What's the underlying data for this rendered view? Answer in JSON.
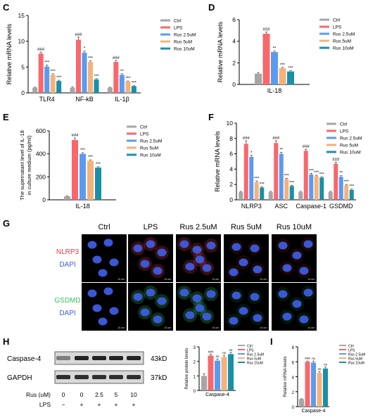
{
  "colors": {
    "Ctrl": "#a6a6a6",
    "LPS": "#f8686b",
    "Rus 2.5uM": "#5b9bef",
    "Rus 5uM": "#f4b27b",
    "Rus 10uM": "#1a8fa8",
    "nlrp3_stain": "#e23a4a",
    "gsdmd_stain": "#34c45a",
    "dapi_stain": "#3d5ce0"
  },
  "legend_names": [
    "Ctrl",
    "LPS",
    "Rus 2.5uM",
    "Rus 5uM",
    "Rus 10uM"
  ],
  "panel_letters": {
    "C": "C",
    "D": "D",
    "E": "E",
    "F": "F",
    "G": "G",
    "H": "H",
    "I": "I"
  },
  "chart_data": [
    {
      "panel": "C",
      "type": "bar",
      "ylabel": "Relative  mRNA levels",
      "ylim": [
        0,
        15
      ],
      "yticks": [
        "0",
        "5",
        "10",
        "15"
      ],
      "categories": [
        "TLR4",
        "NF-kB",
        "IL-1β"
      ],
      "series": [
        {
          "name": "Ctrl",
          "values": [
            1.0,
            1.0,
            1.0
          ],
          "errors": [
            0.1,
            0.15,
            0.1
          ]
        },
        {
          "name": "LPS",
          "values": [
            7.6,
            10.3,
            6.0
          ],
          "errors": [
            0.3,
            0.5,
            0.3
          ]
        },
        {
          "name": "Rus 2.5uM",
          "values": [
            5.1,
            7.8,
            3.5
          ],
          "errors": [
            0.3,
            0.3,
            0.2
          ]
        },
        {
          "name": "Rus 5uM",
          "values": [
            3.5,
            6.0,
            2.2
          ],
          "errors": [
            0.2,
            0.2,
            0.1
          ]
        },
        {
          "name": "Rus 10uM",
          "values": [
            2.3,
            2.6,
            1.3
          ],
          "errors": [
            0.15,
            0.15,
            0.1
          ]
        }
      ],
      "annotations": [
        [
          "",
          "###",
          "***",
          "***",
          "***"
        ],
        [
          "",
          "###",
          "*",
          "***",
          "***"
        ],
        [
          "",
          "###",
          "**",
          "***",
          "***"
        ]
      ]
    },
    {
      "panel": "D",
      "type": "bar",
      "ylabel": "Relative  mRNA levels",
      "ylim": [
        0,
        6
      ],
      "yticks": [
        "0",
        "2",
        "4",
        "6"
      ],
      "categories": [
        "IL-18"
      ],
      "series": [
        {
          "name": "Ctrl",
          "values": [
            1.0
          ],
          "errors": [
            0.1
          ]
        },
        {
          "name": "LPS",
          "values": [
            4.7
          ],
          "errors": [
            0.15
          ]
        },
        {
          "name": "Rus 2.5uM",
          "values": [
            3.0
          ],
          "errors": [
            0.1
          ]
        },
        {
          "name": "Rus 5uM",
          "values": [
            1.5
          ],
          "errors": [
            0.08
          ]
        },
        {
          "name": "Rus 10uM",
          "values": [
            1.2
          ],
          "errors": [
            0.08
          ]
        }
      ],
      "annotations": [
        [
          "",
          "###",
          "**",
          "***",
          "***"
        ]
      ]
    },
    {
      "panel": "E",
      "type": "bar",
      "ylabel": "The supernatant level of IL-18 in culture medium (pg/ml)",
      "ylim": [
        0,
        600
      ],
      "yticks": [
        "0",
        "200",
        "400",
        "600"
      ],
      "categories": [
        "IL-18"
      ],
      "series": [
        {
          "name": "Ctrl",
          "values": [
            30
          ],
          "errors": [
            5
          ]
        },
        {
          "name": "LPS",
          "values": [
            520
          ],
          "errors": [
            18
          ]
        },
        {
          "name": "Rus 2.5uM",
          "values": [
            400
          ],
          "errors": [
            10
          ]
        },
        {
          "name": "Rus 5uM",
          "values": [
            340
          ],
          "errors": [
            8
          ]
        },
        {
          "name": "Rus 10uM",
          "values": [
            280
          ],
          "errors": [
            8
          ]
        }
      ],
      "annotations": [
        [
          "",
          "###",
          "***",
          "***",
          "***"
        ]
      ]
    },
    {
      "panel": "F",
      "type": "bar",
      "ylabel": "Relative  mRNA levels",
      "ylim": [
        0,
        10
      ],
      "yticks": [
        "0",
        "2",
        "4",
        "6",
        "8",
        "10"
      ],
      "categories": [
        "NLRP3",
        "ASC",
        "Caspase-1",
        "GSDMD"
      ],
      "series": [
        {
          "name": "Ctrl",
          "values": [
            1.0,
            1.0,
            1.0,
            1.0
          ],
          "errors": [
            0.1,
            0.1,
            0.1,
            0.1
          ]
        },
        {
          "name": "LPS",
          "values": [
            7.3,
            7.4,
            6.4,
            4.7
          ],
          "errors": [
            0.4,
            0.3,
            0.2,
            0.2
          ]
        },
        {
          "name": "Rus 2.5uM",
          "values": [
            5.6,
            6.0,
            3.3,
            3.0
          ],
          "errors": [
            0.2,
            0.2,
            0.15,
            0.15
          ]
        },
        {
          "name": "Rus 5uM",
          "values": [
            2.3,
            2.7,
            3.1,
            1.9
          ],
          "errors": [
            0.15,
            0.1,
            0.1,
            0.1
          ]
        },
        {
          "name": "Rus 10uM",
          "values": [
            1.6,
            1.8,
            2.9,
            1.3
          ],
          "errors": [
            0.1,
            0.1,
            0.1,
            0.1
          ]
        }
      ],
      "annotations": [
        [
          "",
          "###",
          "*",
          "***",
          "***"
        ],
        [
          "",
          "###",
          "**",
          "***",
          "***"
        ],
        [
          "",
          "###",
          "***",
          "***",
          "***"
        ],
        [
          "",
          "###",
          "**",
          "***",
          "***"
        ]
      ]
    },
    {
      "panel": "H",
      "type": "bar",
      "ylabel": "Relative protein levels",
      "ylim": [
        0,
        3
      ],
      "yticks": [
        "0",
        "1",
        "2",
        "3"
      ],
      "categories": [
        "Caspase-4"
      ],
      "series": [
        {
          "name": "Ctrl",
          "values": [
            1.0
          ],
          "errors": [
            0.15
          ]
        },
        {
          "name": "LPS",
          "values": [
            2.4
          ],
          "errors": [
            0.1
          ]
        },
        {
          "name": "Rus 2.5uM",
          "values": [
            2.05
          ],
          "errors": [
            0.12
          ]
        },
        {
          "name": "Rus 5uM",
          "values": [
            2.3
          ],
          "errors": [
            0.12
          ]
        },
        {
          "name": "Rus 10uM",
          "values": [
            2.5
          ],
          "errors": [
            0.12
          ]
        }
      ],
      "annotations": [
        [
          "",
          "###",
          "ns",
          "ns",
          "ns"
        ]
      ]
    },
    {
      "panel": "I",
      "type": "bar",
      "ylabel": "Relative mRNA levels",
      "ylim": [
        0,
        8
      ],
      "yticks": [
        "0",
        "2",
        "4",
        "6",
        "8"
      ],
      "categories": [
        "Caspase-4"
      ],
      "series": [
        {
          "name": "Ctrl",
          "values": [
            1.0
          ],
          "errors": [
            0.05
          ]
        },
        {
          "name": "LPS",
          "values": [
            6.0
          ],
          "errors": [
            0.1
          ]
        },
        {
          "name": "Rus 2.5uM",
          "values": [
            5.9
          ],
          "errors": [
            0.2
          ]
        },
        {
          "name": "Rus 5uM",
          "values": [
            4.5
          ],
          "errors": [
            0.2
          ]
        },
        {
          "name": "Rus 10uM",
          "values": [
            5.1
          ],
          "errors": [
            0.2
          ]
        }
      ],
      "annotations": [
        [
          "",
          "###",
          "ns",
          "ns",
          "ns"
        ]
      ]
    }
  ],
  "panel_g": {
    "columns": [
      "Ctrl",
      "LPS",
      "Rus 2.5uM",
      "Rus 5uM",
      "Rus 10uM"
    ],
    "rows": [
      {
        "stain": "NLRP3",
        "counter": "DAPI"
      },
      {
        "stain": "GSDMD",
        "counter": "DAPI"
      }
    ],
    "scale_text": "10 um"
  },
  "western": {
    "bands": [
      {
        "name": "Caspase-4",
        "size": "43kD"
      },
      {
        "name": "GAPDH",
        "size": "37kD"
      }
    ],
    "rus_label": "Rus (uM)",
    "rus_values": [
      "0",
      "0",
      "2.5",
      "5",
      "10"
    ],
    "lps_label": "LPS",
    "lps_values": [
      "−",
      "+",
      "+",
      "+",
      "+"
    ]
  }
}
